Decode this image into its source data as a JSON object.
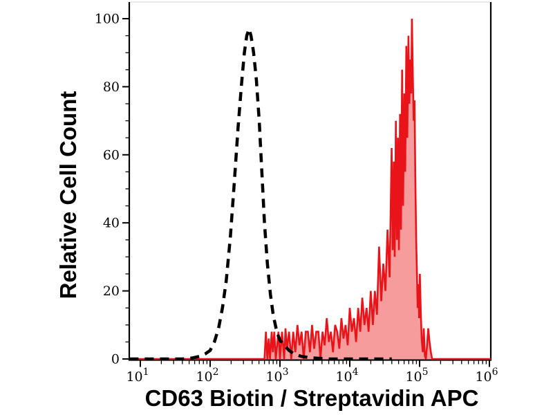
{
  "figure": {
    "background": "#ffffff",
    "axis_color": "#000000",
    "top_border_color": "#dedede",
    "text_color": "#000000"
  },
  "chart_data": {
    "type": "area",
    "subtype": "flow-cytometry-histogram-overlay",
    "xlabel": "CD63 Biotin / Streptavidin APC",
    "ylabel": "Relative Cell Count",
    "x_scale": "log10",
    "xlim": [
      10,
      1000000
    ],
    "ylim": [
      0,
      100
    ],
    "y_ticks": [
      0,
      20,
      40,
      60,
      80,
      100
    ],
    "y_minor_step": 5,
    "x_tick_base": "10",
    "x_tick_exponents": [
      1,
      2,
      3,
      4,
      5,
      6
    ],
    "x_minor_multiples": [
      2,
      3,
      4,
      5,
      6,
      7,
      8,
      9
    ],
    "grid": false,
    "legend": "none",
    "series": [
      {
        "id": "red-filled-histogram",
        "description": "stained sample, red solid line with light red fill, spiky peak near 7e4",
        "style": "solid",
        "color": "#e8141a",
        "fill": "#f79c9c",
        "stroke_width": 2.6,
        "points": [
          [
            7,
            0
          ],
          [
            600,
            0
          ],
          [
            630,
            8
          ],
          [
            660,
            0
          ],
          [
            690,
            6
          ],
          [
            720,
            0
          ],
          [
            760,
            8
          ],
          [
            790,
            2
          ],
          [
            830,
            8
          ],
          [
            870,
            0
          ],
          [
            910,
            4
          ],
          [
            950,
            8
          ],
          [
            1000,
            0
          ],
          [
            1070,
            8
          ],
          [
            1150,
            0
          ],
          [
            1200,
            9
          ],
          [
            1260,
            3
          ],
          [
            1350,
            8
          ],
          [
            1450,
            0
          ],
          [
            1550,
            8
          ],
          [
            1660,
            2
          ],
          [
            1780,
            10
          ],
          [
            1900,
            4
          ],
          [
            2040,
            8
          ],
          [
            2190,
            0
          ],
          [
            2340,
            8
          ],
          [
            2510,
            8
          ],
          [
            2690,
            2
          ],
          [
            2880,
            10
          ],
          [
            3090,
            3
          ],
          [
            3310,
            8
          ],
          [
            3550,
            8
          ],
          [
            3800,
            0
          ],
          [
            4070,
            8
          ],
          [
            4370,
            4
          ],
          [
            4680,
            12
          ],
          [
            5010,
            5
          ],
          [
            5370,
            8
          ],
          [
            5750,
            2
          ],
          [
            6170,
            10
          ],
          [
            6610,
            8
          ],
          [
            7080,
            3
          ],
          [
            7590,
            12
          ],
          [
            8130,
            6
          ],
          [
            8710,
            10
          ],
          [
            9330,
            4
          ],
          [
            10000,
            15
          ],
          [
            10700,
            8
          ],
          [
            11500,
            12
          ],
          [
            12300,
            5
          ],
          [
            13200,
            15
          ],
          [
            14100,
            8
          ],
          [
            15100,
            18
          ],
          [
            16200,
            10
          ],
          [
            17400,
            15
          ],
          [
            18600,
            8
          ],
          [
            20000,
            20
          ],
          [
            21400,
            10
          ],
          [
            22900,
            20
          ],
          [
            24500,
            13
          ],
          [
            26300,
            33
          ],
          [
            28200,
            17
          ],
          [
            30200,
            28
          ],
          [
            32400,
            20
          ],
          [
            34700,
            38
          ],
          [
            37200,
            24
          ],
          [
            39800,
            62
          ],
          [
            41200,
            32
          ],
          [
            42700,
            58
          ],
          [
            44000,
            30
          ],
          [
            45700,
            70
          ],
          [
            47300,
            35
          ],
          [
            49000,
            65
          ],
          [
            50600,
            32
          ],
          [
            52500,
            72
          ],
          [
            54200,
            38
          ],
          [
            56200,
            85
          ],
          [
            58000,
            45
          ],
          [
            60300,
            78
          ],
          [
            62200,
            55
          ],
          [
            64600,
            92
          ],
          [
            66700,
            65
          ],
          [
            69200,
            95
          ],
          [
            71300,
            75
          ],
          [
            73800,
            88
          ],
          [
            75900,
            78
          ],
          [
            77600,
            100
          ],
          [
            79800,
            85
          ],
          [
            82200,
            70
          ],
          [
            84700,
            76
          ],
          [
            87100,
            52
          ],
          [
            89500,
            35
          ],
          [
            91600,
            25
          ],
          [
            93800,
            15
          ],
          [
            96000,
            22
          ],
          [
            98400,
            12
          ],
          [
            101000,
            25
          ],
          [
            104000,
            14
          ],
          [
            107000,
            6
          ],
          [
            111000,
            2
          ],
          [
            115000,
            9
          ],
          [
            119000,
            1
          ],
          [
            123000,
            0
          ],
          [
            128000,
            4
          ],
          [
            133000,
            9
          ],
          [
            139000,
            5
          ],
          [
            145000,
            2
          ],
          [
            151000,
            0
          ],
          [
            1050000,
            0
          ]
        ]
      },
      {
        "id": "black-dashed-histogram",
        "description": "negative control, black thick dashed line, peak near 3.6e2",
        "style": "dashed",
        "color": "#000000",
        "fill": "none",
        "stroke_width": 4.5,
        "dash": [
          13,
          9
        ],
        "points": [
          [
            7,
            0
          ],
          [
            40,
            0
          ],
          [
            56,
            0.3
          ],
          [
            71,
            0.8
          ],
          [
            85,
            1.5
          ],
          [
            100,
            2.5
          ],
          [
            115,
            5
          ],
          [
            132,
            9
          ],
          [
            150,
            15
          ],
          [
            170,
            23
          ],
          [
            195,
            36
          ],
          [
            222,
            52
          ],
          [
            251,
            68
          ],
          [
            282,
            81
          ],
          [
            309,
            90
          ],
          [
            335,
            95
          ],
          [
            360,
            97
          ],
          [
            385,
            95
          ],
          [
            420,
            90
          ],
          [
            460,
            82
          ],
          [
            505,
            70
          ],
          [
            550,
            55
          ],
          [
            600,
            40
          ],
          [
            660,
            28
          ],
          [
            730,
            19
          ],
          [
            800,
            13
          ],
          [
            900,
            8
          ],
          [
            1000,
            5.5
          ],
          [
            1150,
            4
          ],
          [
            1350,
            2.5
          ],
          [
            1600,
            1.5
          ],
          [
            2000,
            0.8
          ],
          [
            2600,
            0.4
          ],
          [
            3500,
            0.2
          ],
          [
            5000,
            0
          ],
          [
            40000,
            0
          ]
        ]
      }
    ]
  }
}
